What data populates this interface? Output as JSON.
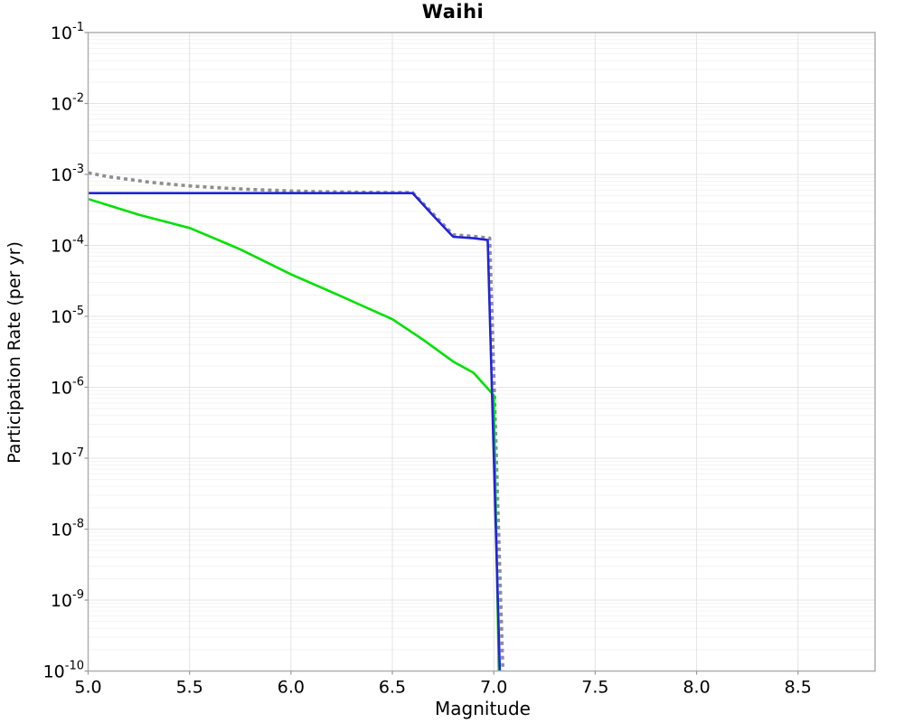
{
  "chart_data": {
    "type": "line",
    "title": "Waihi",
    "xlabel": "Magnitude",
    "ylabel": "Participation Rate (per yr)",
    "xlim": [
      5.0,
      8.88
    ],
    "y_scale": "log",
    "ylim": [
      1e-10,
      0.1
    ],
    "x_ticks": [
      5.0,
      5.5,
      6.0,
      6.5,
      7.0,
      7.5,
      8.0,
      8.5
    ],
    "y_tick_exponents": [
      -1,
      -2,
      -3,
      -4,
      -5,
      -6,
      -7,
      -8,
      -9,
      -10
    ],
    "grid": "major and log-minor gridlines on, light gray",
    "legend": "none",
    "frame_color": "#b0b0b0",
    "major_grid_color": "#e4e4e4",
    "minor_grid_color": "#f3f3f3",
    "tick_color": "#9a9a9a",
    "series": [
      {
        "name": "gray-dashed-curve",
        "color": "#8e8e8e",
        "style": "dotted",
        "width": 3.6,
        "dash": [
          4,
          4
        ],
        "points": [
          [
            5.0,
            0.00105
          ],
          [
            5.1,
            0.00093
          ],
          [
            5.2,
            0.00085
          ],
          [
            5.3,
            0.00078
          ],
          [
            5.4,
            0.00073
          ],
          [
            5.5,
            0.00069
          ],
          [
            5.6,
            0.00066
          ],
          [
            5.7,
            0.000635
          ],
          [
            5.8,
            0.000615
          ],
          [
            5.9,
            0.0006
          ],
          [
            6.0,
            0.000585
          ],
          [
            6.1,
            0.000575
          ],
          [
            6.2,
            0.000567
          ],
          [
            6.3,
            0.000562
          ],
          [
            6.4,
            0.000558
          ],
          [
            6.5,
            0.000555
          ],
          [
            6.6,
            0.000555
          ],
          [
            6.7,
            0.00028
          ],
          [
            6.8,
            0.000141
          ],
          [
            6.9,
            0.000134
          ],
          [
            6.98,
            0.000127
          ],
          [
            7.045,
            1e-10
          ]
        ]
      },
      {
        "name": "green-curve",
        "color": "#00e000",
        "style": "solid",
        "width": 2.6,
        "points": [
          [
            5.0,
            0.00045
          ],
          [
            5.25,
            0.00027
          ],
          [
            5.5,
            0.000176
          ],
          [
            5.75,
            8.8e-05
          ],
          [
            6.0,
            3.9e-05
          ],
          [
            6.25,
            1.9e-05
          ],
          [
            6.5,
            9.1e-06
          ],
          [
            6.65,
            4.7e-06
          ],
          [
            6.8,
            2.3e-06
          ],
          [
            6.9,
            1.6e-06
          ],
          [
            7.0,
            7.7e-07
          ],
          [
            7.025,
            1e-10
          ]
        ]
      },
      {
        "name": "blue-curve",
        "color": "#2222dd",
        "style": "solid",
        "width": 2.6,
        "points": [
          [
            5.0,
            0.000545
          ],
          [
            6.6,
            0.000545
          ],
          [
            6.7,
            0.000265
          ],
          [
            6.8,
            0.000132
          ],
          [
            6.9,
            0.000126
          ],
          [
            6.97,
            0.000119
          ],
          [
            7.03,
            1e-10
          ]
        ]
      }
    ]
  }
}
